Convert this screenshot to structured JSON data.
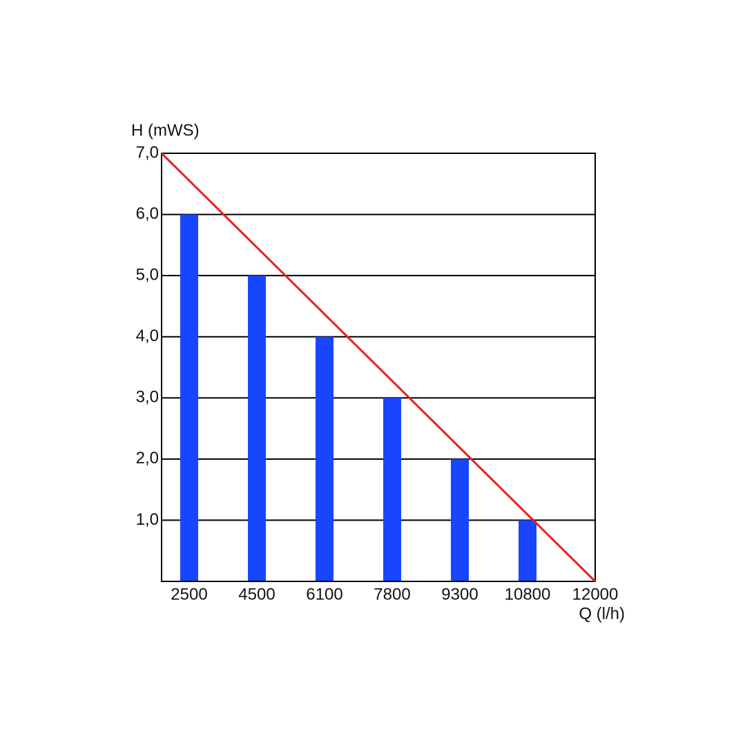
{
  "chart_data": {
    "type": "bar",
    "y_label": "H (mWS)",
    "x_label": "Q (l/h)",
    "categories": [
      "2500",
      "4500",
      "6100",
      "7800",
      "9300",
      "10800",
      "12000"
    ],
    "values": [
      6,
      5,
      4,
      3,
      2,
      1,
      null
    ],
    "color": "#1846ff",
    "line": {
      "color": "#e82020",
      "values": [
        7,
        0
      ]
    },
    "ylim": [
      0,
      7
    ],
    "yticks": [
      {
        "value": 1,
        "label": "1,0"
      },
      {
        "value": 2,
        "label": "2,0"
      },
      {
        "value": 3,
        "label": "3,0"
      },
      {
        "value": 4,
        "label": "4,0"
      },
      {
        "value": 5,
        "label": "5,0"
      },
      {
        "value": 6,
        "label": "6,0"
      },
      {
        "value": 7,
        "label": "7,0"
      }
    ],
    "grid": true
  }
}
